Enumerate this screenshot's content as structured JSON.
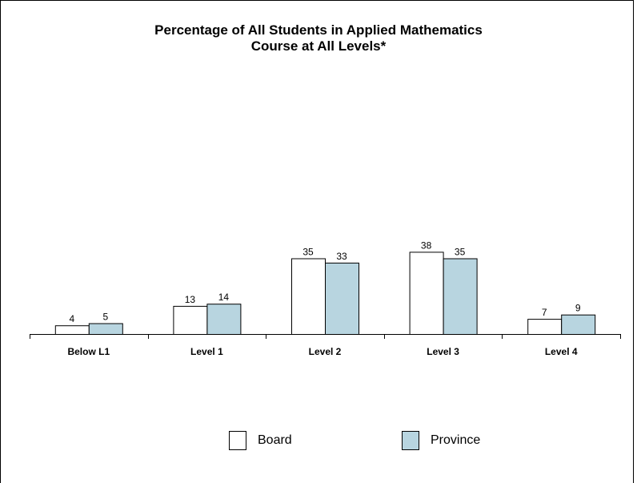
{
  "chart_data": {
    "type": "bar",
    "title": "Percentage of All Students in Applied Mathematics",
    "subtitle": "Course at All Levels*",
    "categories": [
      "Below L1",
      "Level 1",
      "Level 2",
      "Level 3",
      "Level 4"
    ],
    "series": [
      {
        "name": "Board",
        "values": [
          4,
          13,
          35,
          38,
          7
        ],
        "color": "#ffffff"
      },
      {
        "name": "Province",
        "values": [
          5,
          14,
          33,
          35,
          9
        ],
        "color": "#b8d5e0"
      }
    ],
    "xlabel": "",
    "ylabel": "",
    "ylim": [
      0,
      100
    ],
    "grid": false,
    "legend": "bottom",
    "stroke_color": "#000000"
  }
}
